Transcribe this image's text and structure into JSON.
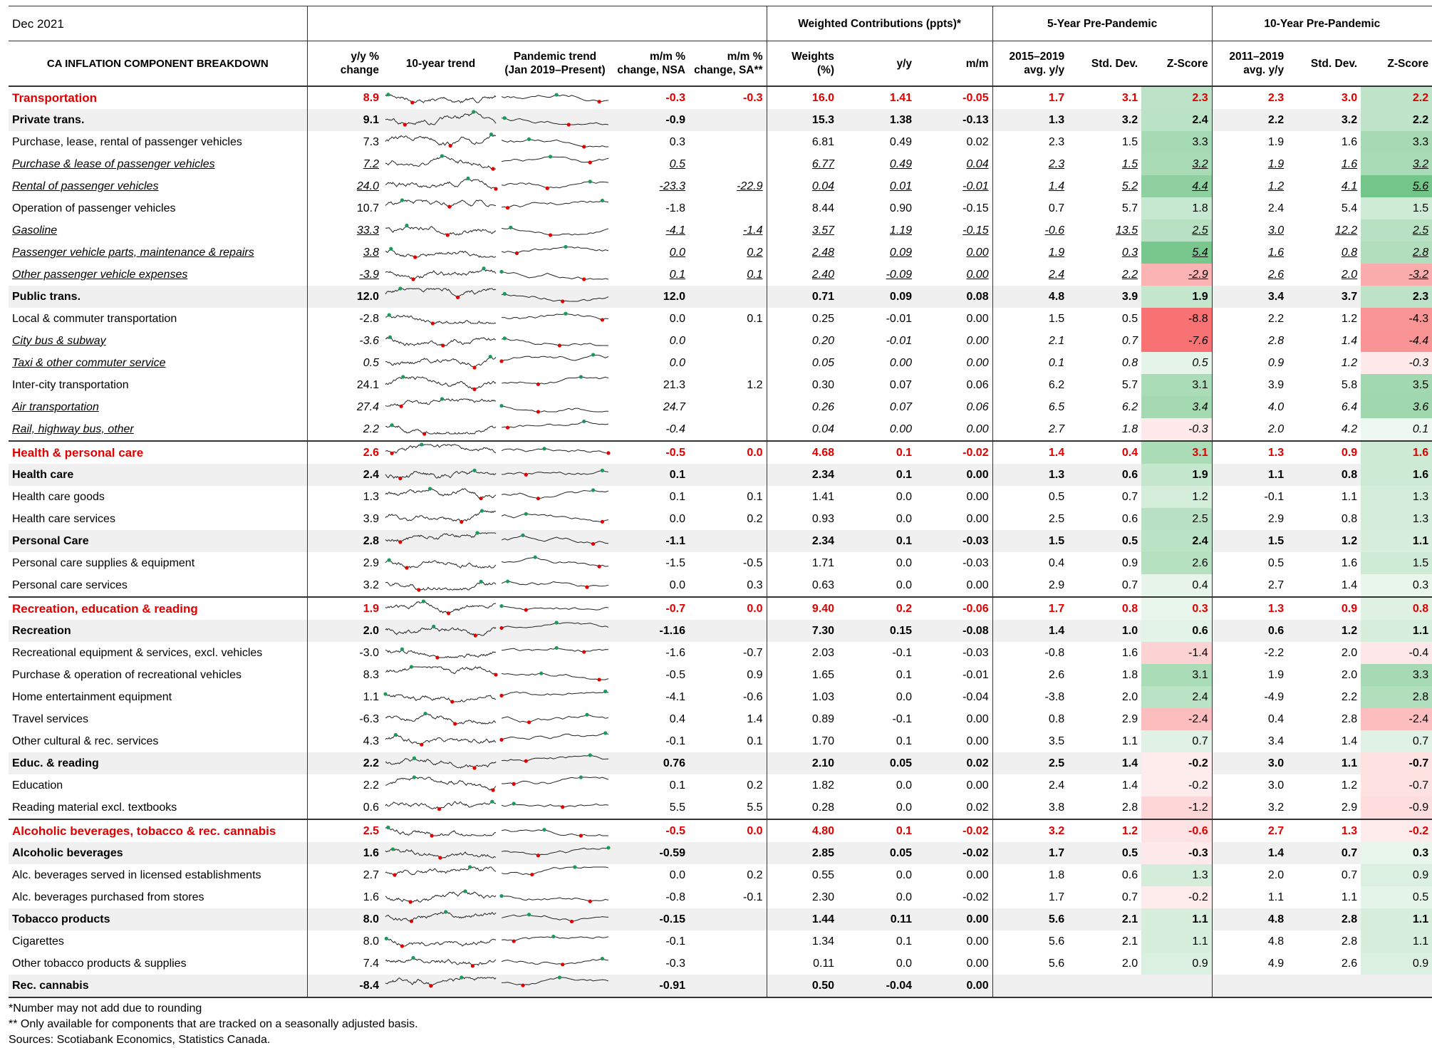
{
  "header": {
    "title": "Dec 2021",
    "subtitle": "CA INFLATION COMPONENT BREAKDOWN",
    "groups": [
      "Weighted Contributions (ppts)*",
      "5-Year Pre-Pandemic",
      "10-Year Pre-Pandemic"
    ],
    "columns": [
      "y/y %\nchange",
      "10-year trend",
      "Pandemic trend\n(Jan 2019–Present)",
      "m/m %\nchange, NSA",
      "m/m %\nchange, SA**",
      "Weights\n(%)",
      "y/y",
      "m/m",
      "2015–2019\navg. y/y",
      "Std. Dev.",
      "Z-Score",
      "2011–2019\navg. y/y",
      "Std. Dev.",
      "Z-Score"
    ]
  },
  "table": {
    "rows": [
      {
        "label": "Transportation",
        "style": "s",
        "values": [
          "8.9",
          "-0.3",
          "-0.3",
          "16.0",
          "1.41",
          "-0.05",
          "1.7",
          "3.1",
          "2.3",
          "2.3",
          "3.0",
          "2.2"
        ]
      },
      {
        "label": "Private trans.",
        "style": "b",
        "values": [
          "9.1",
          "-0.9",
          null,
          "15.3",
          "1.38",
          "-0.13",
          "1.3",
          "3.2",
          "2.4",
          "2.2",
          "3.2",
          "2.2"
        ]
      },
      {
        "label": "Purchase, lease, rental of passenger vehicles",
        "style": "n",
        "values": [
          "7.3",
          "0.3",
          null,
          "6.81",
          "0.49",
          "0.02",
          "2.3",
          "1.5",
          "3.3",
          "1.9",
          "1.6",
          "3.3"
        ]
      },
      {
        "label": "Purchase & lease of passenger vehicles",
        "style": "iu",
        "values": [
          "7.2",
          "0.5",
          null,
          "6.77",
          "0.49",
          "0.04",
          "2.3",
          "1.5",
          "3.2",
          "1.9",
          "1.6",
          "3.2"
        ]
      },
      {
        "label": "Rental of passenger vehicles",
        "style": "iu",
        "values": [
          "24.0",
          "-23.3",
          "-22.9",
          "0.04",
          "0.01",
          "-0.01",
          "1.4",
          "5.2",
          "4.4",
          "1.2",
          "4.1",
          "5.6"
        ]
      },
      {
        "label": "Operation of passenger vehicles",
        "style": "n",
        "values": [
          "10.7",
          "-1.8",
          null,
          "8.44",
          "0.90",
          "-0.15",
          "0.7",
          "5.7",
          "1.8",
          "2.4",
          "5.4",
          "1.5"
        ]
      },
      {
        "label": "Gasoline",
        "style": "iu",
        "values": [
          "33.3",
          "-4.1",
          "-1.4",
          "3.57",
          "1.19",
          "-0.15",
          "-0.6",
          "13.5",
          "2.5",
          "3.0",
          "12.2",
          "2.5"
        ]
      },
      {
        "label": "Passenger vehicle parts, maintenance & repairs",
        "style": "iu",
        "values": [
          "3.8",
          "0.0",
          "0.2",
          "2.48",
          "0.09",
          "0.00",
          "1.9",
          "0.3",
          "5.4",
          "1.6",
          "0.8",
          "2.8"
        ]
      },
      {
        "label": "Other passenger vehicle expenses",
        "style": "iu",
        "values": [
          "-3.9",
          "0.1",
          "0.1",
          "2.40",
          "-0.09",
          "0.00",
          "2.4",
          "2.2",
          "-2.9",
          "2.6",
          "2.0",
          "-3.2"
        ]
      },
      {
        "label": "Public trans.",
        "style": "b",
        "values": [
          "12.0",
          "12.0",
          null,
          "0.71",
          "0.09",
          "0.08",
          "4.8",
          "3.9",
          "1.9",
          "3.4",
          "3.7",
          "2.3"
        ]
      },
      {
        "label": "Local & commuter transportation",
        "style": "n",
        "values": [
          "-2.8",
          "0.0",
          "0.1",
          "0.25",
          "-0.01",
          "0.00",
          "1.5",
          "0.5",
          "-8.8",
          "2.2",
          "1.2",
          "-4.3"
        ]
      },
      {
        "label": "City bus & subway",
        "style": "i",
        "values": [
          "-3.6",
          "0.0",
          null,
          "0.20",
          "-0.01",
          "0.00",
          "2.1",
          "0.7",
          "-7.6",
          "2.8",
          "1.4",
          "-4.4"
        ]
      },
      {
        "label": "Taxi & other commuter service",
        "style": "i",
        "values": [
          "0.5",
          "0.0",
          null,
          "0.05",
          "0.00",
          "0.00",
          "0.1",
          "0.8",
          "0.5",
          "0.9",
          "1.2",
          "-0.3"
        ]
      },
      {
        "label": "Inter-city transportation",
        "style": "n",
        "values": [
          "24.1",
          "21.3",
          "1.2",
          "0.30",
          "0.07",
          "0.06",
          "6.2",
          "5.7",
          "3.1",
          "3.9",
          "5.8",
          "3.5"
        ]
      },
      {
        "label": "Air transportation",
        "style": "i",
        "values": [
          "27.4",
          "24.7",
          null,
          "0.26",
          "0.07",
          "0.06",
          "6.5",
          "6.2",
          "3.4",
          "4.0",
          "6.4",
          "3.6"
        ]
      },
      {
        "label": "Rail, highway bus, other",
        "style": "i",
        "values": [
          "2.2",
          "-0.4",
          null,
          "0.04",
          "0.00",
          "0.00",
          "2.7",
          "1.8",
          "-0.3",
          "2.0",
          "4.2",
          "0.1"
        ]
      },
      {
        "label": "Health & personal care",
        "style": "s",
        "values": [
          "2.6",
          "-0.5",
          "0.0",
          "4.68",
          "0.1",
          "-0.02",
          "1.4",
          "0.4",
          "3.1",
          "1.3",
          "0.9",
          "1.6"
        ]
      },
      {
        "label": "Health care",
        "style": "b",
        "values": [
          "2.4",
          "0.1",
          null,
          "2.34",
          "0.1",
          "0.00",
          "1.3",
          "0.6",
          "1.9",
          "1.1",
          "0.8",
          "1.6"
        ]
      },
      {
        "label": "Health care goods",
        "style": "n",
        "values": [
          "1.3",
          "0.1",
          "0.1",
          "1.41",
          "0.0",
          "0.00",
          "0.5",
          "0.7",
          "1.2",
          "-0.1",
          "1.1",
          "1.3"
        ]
      },
      {
        "label": "Health care services",
        "style": "n",
        "values": [
          "3.9",
          "0.0",
          "0.2",
          "0.93",
          "0.0",
          "0.00",
          "2.5",
          "0.6",
          "2.5",
          "2.9",
          "0.8",
          "1.3"
        ]
      },
      {
        "label": "Personal Care",
        "style": "b",
        "values": [
          "2.8",
          "-1.1",
          null,
          "2.34",
          "0.1",
          "-0.03",
          "1.5",
          "0.5",
          "2.4",
          "1.5",
          "1.2",
          "1.1"
        ]
      },
      {
        "label": "Personal care supplies & equipment",
        "style": "n",
        "values": [
          "2.9",
          "-1.5",
          "-0.5",
          "1.71",
          "0.0",
          "-0.03",
          "0.4",
          "0.9",
          "2.6",
          "0.5",
          "1.6",
          "1.5"
        ]
      },
      {
        "label": "Personal care services",
        "style": "n",
        "values": [
          "3.2",
          "0.0",
          "0.3",
          "0.63",
          "0.0",
          "0.00",
          "2.9",
          "0.7",
          "0.4",
          "2.7",
          "1.4",
          "0.3"
        ]
      },
      {
        "label": "Recreation, education & reading",
        "style": "s",
        "values": [
          "1.9",
          "-0.7",
          "0.0",
          "9.40",
          "0.2",
          "-0.06",
          "1.7",
          "0.8",
          "0.3",
          "1.3",
          "0.9",
          "0.8"
        ]
      },
      {
        "label": "Recreation",
        "style": "b",
        "values": [
          "2.0",
          "-1.16",
          null,
          "7.30",
          "0.15",
          "-0.08",
          "1.4",
          "1.0",
          "0.6",
          "0.6",
          "1.2",
          "1.1"
        ]
      },
      {
        "label": "Recreational equipment & services, excl. vehicles",
        "style": "n",
        "values": [
          "-3.0",
          "-1.6",
          "-0.7",
          "2.03",
          "-0.1",
          "-0.03",
          "-0.8",
          "1.6",
          "-1.4",
          "-2.2",
          "2.0",
          "-0.4"
        ]
      },
      {
        "label": "Purchase & operation of recreational vehicles",
        "style": "n",
        "values": [
          "8.3",
          "-0.5",
          "0.9",
          "1.65",
          "0.1",
          "-0.01",
          "2.6",
          "1.8",
          "3.1",
          "1.9",
          "2.0",
          "3.3"
        ]
      },
      {
        "label": "Home entertainment equipment",
        "style": "n",
        "values": [
          "1.1",
          "-4.1",
          "-0.6",
          "1.03",
          "0.0",
          "-0.04",
          "-3.8",
          "2.0",
          "2.4",
          "-4.9",
          "2.2",
          "2.8"
        ]
      },
      {
        "label": "Travel services",
        "style": "n",
        "values": [
          "-6.3",
          "0.4",
          "1.4",
          "0.89",
          "-0.1",
          "0.00",
          "0.8",
          "2.9",
          "-2.4",
          "0.4",
          "2.8",
          "-2.4"
        ]
      },
      {
        "label": "Other cultural & rec. services",
        "style": "n",
        "values": [
          "4.3",
          "-0.1",
          "0.1",
          "1.70",
          "0.1",
          "0.00",
          "3.5",
          "1.1",
          "0.7",
          "3.4",
          "1.4",
          "0.7"
        ]
      },
      {
        "label": "Educ. & reading",
        "style": "b",
        "values": [
          "2.2",
          "0.76",
          null,
          "2.10",
          "0.05",
          "0.02",
          "2.5",
          "1.4",
          "-0.2",
          "3.0",
          "1.1",
          "-0.7"
        ]
      },
      {
        "label": "Education",
        "style": "n",
        "values": [
          "2.2",
          "0.1",
          "0.2",
          "1.82",
          "0.0",
          "0.00",
          "2.4",
          "1.4",
          "-0.2",
          "3.0",
          "1.2",
          "-0.7"
        ]
      },
      {
        "label": "Reading material excl. textbooks",
        "style": "n",
        "values": [
          "0.6",
          "5.5",
          "5.5",
          "0.28",
          "0.0",
          "0.02",
          "3.8",
          "2.8",
          "-1.2",
          "3.2",
          "2.9",
          "-0.9"
        ]
      },
      {
        "label": "Alcoholic beverages, tobacco & rec. cannabis",
        "style": "s",
        "values": [
          "2.5",
          "-0.5",
          "0.0",
          "4.80",
          "0.1",
          "-0.02",
          "3.2",
          "1.2",
          "-0.6",
          "2.7",
          "1.3",
          "-0.2"
        ]
      },
      {
        "label": "Alcoholic beverages",
        "style": "b",
        "values": [
          "1.6",
          "-0.59",
          null,
          "2.85",
          "0.05",
          "-0.02",
          "1.7",
          "0.5",
          "-0.3",
          "1.4",
          "0.7",
          "0.3"
        ]
      },
      {
        "label": "Alc. beverages served in licensed establishments",
        "style": "n",
        "values": [
          "2.7",
          "0.0",
          "0.2",
          "0.55",
          "0.0",
          "0.00",
          "1.8",
          "0.6",
          "1.3",
          "2.0",
          "0.7",
          "0.9"
        ]
      },
      {
        "label": "Alc. beverages purchased from stores",
        "style": "n",
        "values": [
          "1.6",
          "-0.8",
          "-0.1",
          "2.30",
          "0.0",
          "-0.02",
          "1.7",
          "0.7",
          "-0.2",
          "1.1",
          "1.1",
          "0.5"
        ]
      },
      {
        "label": "Tobacco products",
        "style": "b",
        "values": [
          "8.0",
          "-0.15",
          null,
          "1.44",
          "0.11",
          "0.00",
          "5.6",
          "2.1",
          "1.1",
          "4.8",
          "2.8",
          "1.1"
        ]
      },
      {
        "label": "Cigarettes",
        "style": "n",
        "values": [
          "8.0",
          "-0.1",
          null,
          "1.34",
          "0.1",
          "0.00",
          "5.6",
          "2.1",
          "1.1",
          "4.8",
          "2.8",
          "1.1"
        ]
      },
      {
        "label": "Other tobacco products & supplies",
        "style": "n",
        "values": [
          "7.4",
          "-0.3",
          null,
          "0.11",
          "0.0",
          "0.00",
          "5.6",
          "2.0",
          "0.9",
          "4.9",
          "2.6",
          "0.9"
        ]
      },
      {
        "label": "Rec. cannabis",
        "style": "b",
        "values": [
          "-8.4",
          "-0.91",
          null,
          "0.50",
          "-0.04",
          "0.00",
          null,
          null,
          null,
          null,
          null,
          null
        ]
      }
    ]
  },
  "footnotes": [
    "*Number may not add due to rounding",
    "** Only available for components that are tracked on a seasonally adjusted basis.",
    "Sources: Scotiabank Economics, Statistics Canada."
  ]
}
